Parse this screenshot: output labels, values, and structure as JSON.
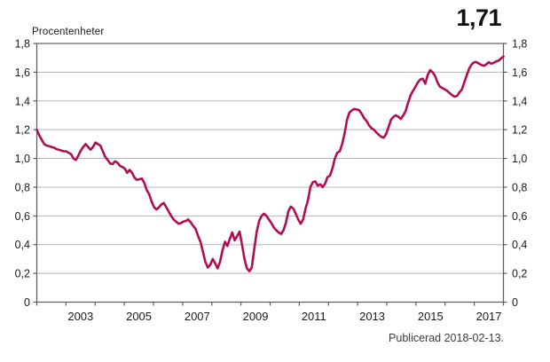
{
  "header": {
    "ylabel": "Procentenheter",
    "latest_value": "1,71"
  },
  "footer": {
    "published": "Publicerad 2018-02-13."
  },
  "colors": {
    "line": "#b00e52",
    "grid": "#b5b5b5",
    "axis": "#5a5a5a",
    "tick_text": "#1a1a1a",
    "footer_text": "#3a3a3a",
    "background": "#ffffff"
  },
  "chart_data": {
    "type": "line",
    "title": "",
    "xlabel": "",
    "ylabel": "Procentenheter",
    "ylim": [
      0,
      1.8
    ],
    "x_range_years": [
      2002,
      2018
    ],
    "frequency": "monthly",
    "start_month": "2002-01",
    "end_month": "2017-12",
    "grid": true,
    "legend": "none",
    "annotation_last_value": "1,71",
    "x_tick_labels": [
      "2003",
      "2005",
      "2007",
      "2009",
      "2011",
      "2013",
      "2015",
      "2017"
    ],
    "x_tick_label_years": [
      2003,
      2005,
      2007,
      2009,
      2011,
      2013,
      2015,
      2017
    ],
    "y_tick_labels": [
      "0",
      "0,2",
      "0,4",
      "0,6",
      "0,8",
      "1,0",
      "1,2",
      "1,4",
      "1,6",
      "1,8"
    ],
    "y_tick_values": [
      0,
      0.2,
      0.4,
      0.6,
      0.8,
      1.0,
      1.2,
      1.4,
      1.6,
      1.8
    ],
    "values": [
      1.2,
      1.16,
      1.13,
      1.1,
      1.09,
      1.085,
      1.08,
      1.075,
      1.065,
      1.06,
      1.055,
      1.05,
      1.05,
      1.04,
      1.03,
      1.0,
      0.99,
      1.02,
      1.055,
      1.08,
      1.1,
      1.08,
      1.06,
      1.08,
      1.11,
      1.1,
      1.09,
      1.05,
      1.01,
      0.99,
      0.965,
      0.96,
      0.98,
      0.97,
      0.95,
      0.94,
      0.93,
      0.9,
      0.92,
      0.9,
      0.865,
      0.85,
      0.855,
      0.86,
      0.83,
      0.78,
      0.75,
      0.7,
      0.66,
      0.645,
      0.66,
      0.68,
      0.69,
      0.66,
      0.63,
      0.6,
      0.575,
      0.56,
      0.545,
      0.55,
      0.56,
      0.565,
      0.575,
      0.555,
      0.53,
      0.51,
      0.46,
      0.42,
      0.35,
      0.28,
      0.24,
      0.26,
      0.3,
      0.27,
      0.235,
      0.28,
      0.36,
      0.42,
      0.39,
      0.44,
      0.485,
      0.43,
      0.46,
      0.49,
      0.4,
      0.3,
      0.235,
      0.215,
      0.24,
      0.37,
      0.49,
      0.565,
      0.6,
      0.615,
      0.6,
      0.575,
      0.55,
      0.52,
      0.5,
      0.485,
      0.475,
      0.5,
      0.555,
      0.635,
      0.665,
      0.65,
      0.615,
      0.575,
      0.545,
      0.575,
      0.65,
      0.71,
      0.8,
      0.835,
      0.84,
      0.81,
      0.82,
      0.8,
      0.825,
      0.87,
      0.88,
      0.93,
      1.0,
      1.04,
      1.05,
      1.1,
      1.175,
      1.27,
      1.32,
      1.335,
      1.345,
      1.34,
      1.335,
      1.31,
      1.28,
      1.26,
      1.23,
      1.21,
      1.2,
      1.18,
      1.165,
      1.15,
      1.145,
      1.17,
      1.22,
      1.27,
      1.29,
      1.3,
      1.29,
      1.275,
      1.3,
      1.33,
      1.39,
      1.44,
      1.47,
      1.5,
      1.53,
      1.55,
      1.555,
      1.52,
      1.58,
      1.615,
      1.6,
      1.575,
      1.53,
      1.5,
      1.49,
      1.48,
      1.47,
      1.455,
      1.44,
      1.43,
      1.435,
      1.46,
      1.48,
      1.53,
      1.58,
      1.625,
      1.655,
      1.67,
      1.67,
      1.66,
      1.65,
      1.645,
      1.655,
      1.67,
      1.66,
      1.665,
      1.675,
      1.68,
      1.695,
      1.71
    ]
  }
}
